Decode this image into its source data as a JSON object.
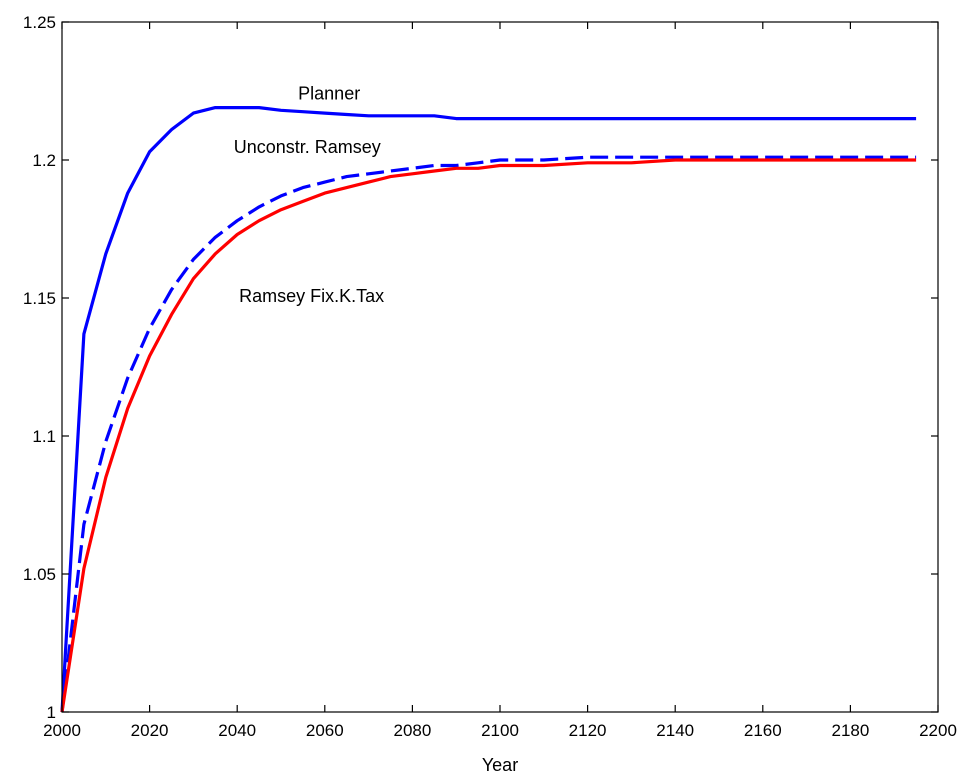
{
  "chart_data": {
    "type": "line",
    "title": "",
    "xlabel": "Year",
    "ylabel": "",
    "xlim": [
      2000,
      2200
    ],
    "ylim": [
      1,
      1.25
    ],
    "xticks": [
      2000,
      2020,
      2040,
      2060,
      2080,
      2100,
      2120,
      2140,
      2160,
      2180,
      2200
    ],
    "yticks": [
      1,
      1.05,
      1.1,
      1.15,
      1.2,
      1.25
    ],
    "xtick_labels": [
      "2000",
      "2020",
      "2040",
      "2060",
      "2080",
      "2100",
      "2120",
      "2140",
      "2160",
      "2180",
      "2200"
    ],
    "ytick_labels": [
      "1",
      "1.05",
      "1.1",
      "1.15",
      "1.2",
      "1.25"
    ],
    "grid": false,
    "series": [
      {
        "name": "Planner",
        "color": "#0000ff",
        "style": "solid",
        "x": [
          2000,
          2005,
          2010,
          2015,
          2020,
          2025,
          2030,
          2035,
          2040,
          2045,
          2050,
          2055,
          2060,
          2065,
          2070,
          2075,
          2080,
          2085,
          2090,
          2095,
          2100,
          2110,
          2120,
          2130,
          2140,
          2150,
          2160,
          2170,
          2180,
          2190,
          2195
        ],
        "y": [
          1.0,
          1.137,
          1.166,
          1.188,
          1.203,
          1.211,
          1.217,
          1.219,
          1.219,
          1.219,
          1.218,
          1.2175,
          1.217,
          1.2165,
          1.216,
          1.216,
          1.216,
          1.216,
          1.215,
          1.215,
          1.215,
          1.215,
          1.215,
          1.215,
          1.215,
          1.215,
          1.215,
          1.215,
          1.215,
          1.215,
          1.215
        ]
      },
      {
        "name": "Unconstr. Ramsey",
        "color": "#0000ff",
        "style": "dashed",
        "x": [
          2000,
          2005,
          2010,
          2015,
          2020,
          2025,
          2030,
          2035,
          2040,
          2045,
          2050,
          2055,
          2060,
          2065,
          2070,
          2075,
          2080,
          2085,
          2090,
          2095,
          2100,
          2110,
          2120,
          2130,
          2140,
          2150,
          2160,
          2170,
          2180,
          2190,
          2195
        ],
        "y": [
          1.0,
          1.068,
          1.098,
          1.121,
          1.139,
          1.153,
          1.164,
          1.172,
          1.178,
          1.183,
          1.187,
          1.19,
          1.192,
          1.194,
          1.195,
          1.196,
          1.197,
          1.198,
          1.198,
          1.199,
          1.2,
          1.2,
          1.201,
          1.201,
          1.201,
          1.201,
          1.201,
          1.201,
          1.201,
          1.201,
          1.201
        ]
      },
      {
        "name": "Ramsey Fix.K.Tax",
        "color": "#ff0000",
        "style": "solid",
        "x": [
          2000,
          2005,
          2010,
          2015,
          2020,
          2025,
          2030,
          2035,
          2040,
          2045,
          2050,
          2055,
          2060,
          2065,
          2070,
          2075,
          2080,
          2085,
          2090,
          2095,
          2100,
          2110,
          2120,
          2130,
          2140,
          2150,
          2160,
          2170,
          2180,
          2190,
          2195
        ],
        "y": [
          1.0,
          1.052,
          1.085,
          1.11,
          1.129,
          1.144,
          1.157,
          1.166,
          1.173,
          1.178,
          1.182,
          1.185,
          1.188,
          1.19,
          1.192,
          1.194,
          1.195,
          1.196,
          1.197,
          1.197,
          1.198,
          1.198,
          1.199,
          1.199,
          1.2,
          1.2,
          1.2,
          1.2,
          1.2,
          1.2,
          1.2
        ]
      }
    ],
    "annotations": [
      {
        "text": "Planner",
        "x": 2061,
        "y": 1.222
      },
      {
        "text": "Unconstr. Ramsey",
        "x": 2056,
        "y": 1.2025
      },
      {
        "text": "Ramsey Fix.K.Tax",
        "x": 2057,
        "y": 1.1485
      }
    ]
  }
}
